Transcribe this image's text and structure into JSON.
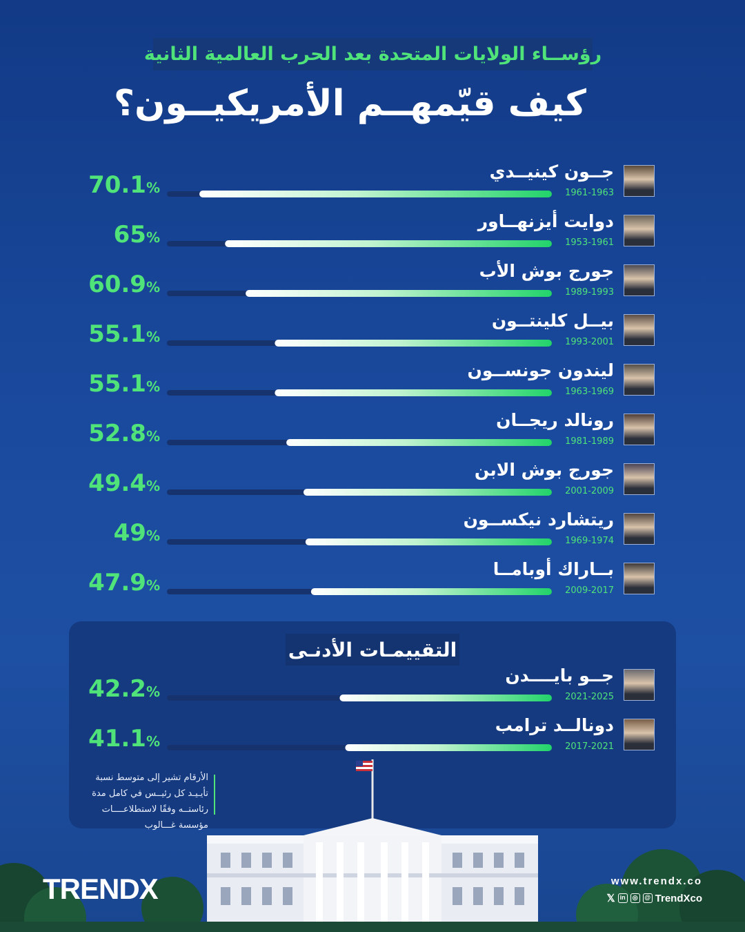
{
  "header": {
    "subtitle": "رؤســاء الولايات المتحدة بعد الحرب العالمية الثانية",
    "title": "كيف قيّمهــم الأمريكيــون؟"
  },
  "low_section": {
    "title": "التقييمـات الأدنـى"
  },
  "footnote": "الأرقام تشير إلى متوسط نسبة تأيـيـد كل رئيــس في كامل مدة رئاستــه وفقًا لاستطلاعــــات مؤسسة غـــالوب",
  "brand": {
    "logo": "TRENDX",
    "website": "www.trendx.co",
    "handle": "TrendXco"
  },
  "colors": {
    "accent_green": "#4fe37a",
    "background": "#1a4a9e",
    "track": "#16336e"
  },
  "chart_data": {
    "type": "bar",
    "orientation": "horizontal",
    "unit": "%",
    "xlim": [
      0,
      100
    ],
    "groups": [
      {
        "title": "",
        "rows": [
          {
            "name": "جــون كينيــدي",
            "years": "1961-1963",
            "value": 70.1,
            "label": "70.1"
          },
          {
            "name": "دوايت أيزنهــاور",
            "years": "1953-1961",
            "value": 65,
            "label": "65"
          },
          {
            "name": "جورج بوش الأب",
            "years": "1989-1993",
            "value": 60.9,
            "label": "60.9"
          },
          {
            "name": "بيــل كلينتــون",
            "years": "1993-2001",
            "value": 55.1,
            "label": "55.1"
          },
          {
            "name": "ليندون جونســون",
            "years": "1963-1969",
            "value": 55.1,
            "label": "55.1"
          },
          {
            "name": "رونالد ريجــان",
            "years": "1981-1989",
            "value": 52.8,
            "label": "52.8"
          },
          {
            "name": "جورج بوش الابن",
            "years": "2001-2009",
            "value": 49.4,
            "label": "49.4"
          },
          {
            "name": "ريتشارد نيكســون",
            "years": "1969-1974",
            "value": 49,
            "label": "49"
          },
          {
            "name": "بــاراك أوبامــا",
            "years": "2009-2017",
            "value": 47.9,
            "label": "47.9"
          }
        ]
      },
      {
        "title": "التقييمـات الأدنـى",
        "rows": [
          {
            "name": "جــو بايــــدن",
            "years": "2021-2025",
            "value": 42.2,
            "label": "42.2"
          },
          {
            "name": "دونالــد ترامب",
            "years": "2017-2021",
            "value": 41.1,
            "label": "41.1"
          }
        ]
      }
    ]
  }
}
